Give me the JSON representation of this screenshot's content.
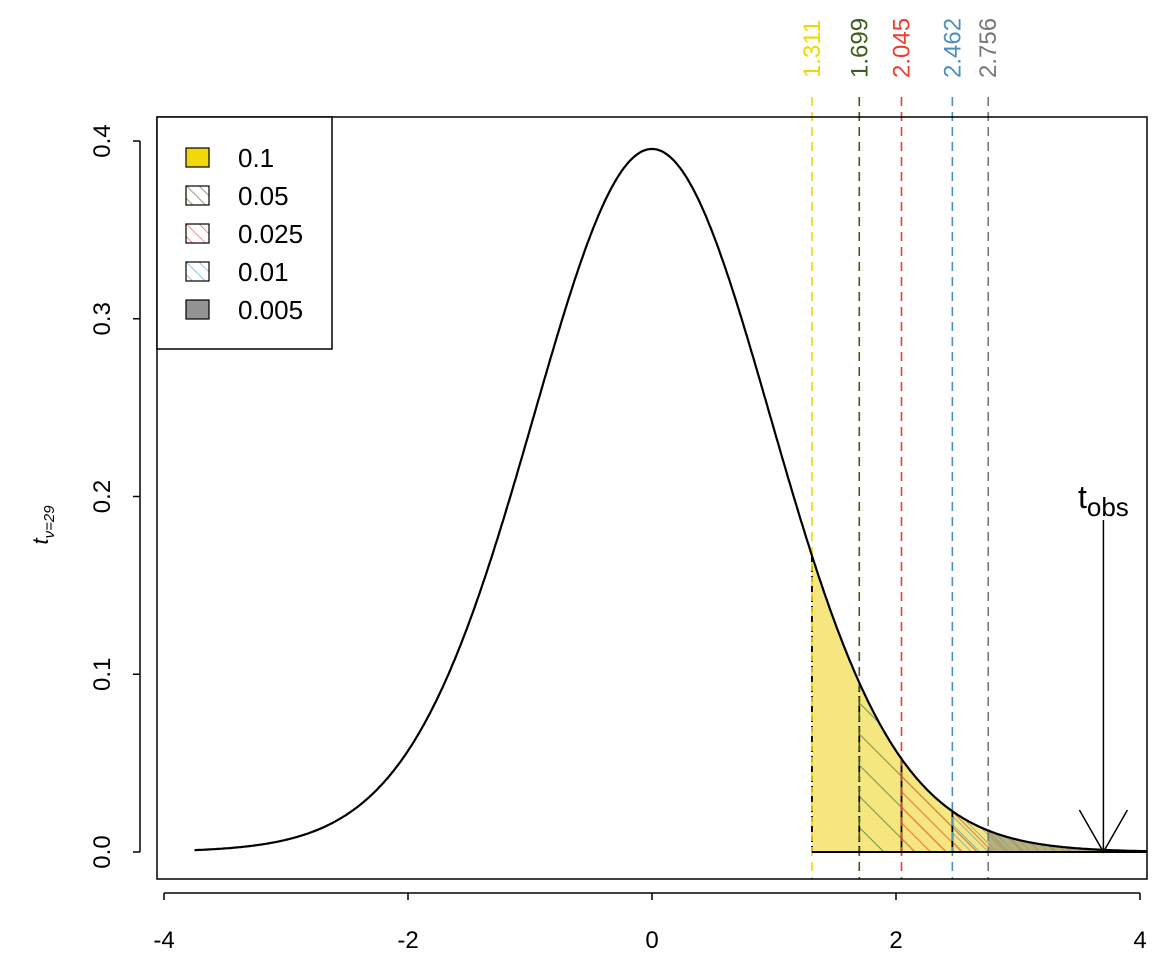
{
  "chart_data": {
    "type": "area",
    "title": "",
    "xlabel": "",
    "ylabel": {
      "base": "t",
      "subscript": "ν=29"
    },
    "df": 29,
    "xlim": [
      -4,
      4
    ],
    "ylim": [
      0,
      0.4
    ],
    "x_ticks": [
      "-4",
      "-2",
      "0",
      "2",
      "4"
    ],
    "x_tick_values": [
      -4,
      -2,
      0,
      2,
      4
    ],
    "y_ticks": [
      "0.0",
      "0.1",
      "0.2",
      "0.3",
      "0.4"
    ],
    "y_tick_values": [
      0,
      0.1,
      0.2,
      0.3,
      0.4
    ],
    "curve_range": [
      -3.75,
      4.06
    ],
    "critical_values": [
      {
        "alpha": "0.1",
        "t": 1.311,
        "label": "1.311",
        "color": "#f2d700",
        "fill": "solid"
      },
      {
        "alpha": "0.05",
        "t": 1.699,
        "label": "1.699",
        "color": "#3d5e1a",
        "fill": "hatch"
      },
      {
        "alpha": "0.025",
        "t": 2.045,
        "label": "2.045",
        "color": "#f03c2e",
        "fill": "hatch"
      },
      {
        "alpha": "0.01",
        "t": 2.462,
        "label": "2.462",
        "color": "#4a8fc0",
        "fill": "hatch"
      },
      {
        "alpha": "0.005",
        "t": 2.756,
        "label": "2.756",
        "color": "#777777",
        "fill": "solid"
      }
    ],
    "legend": {
      "placement": "top-left",
      "entries": [
        "0.1",
        "0.05",
        "0.025",
        "0.01",
        "0.005"
      ]
    },
    "t_obs": {
      "value": 3.7,
      "label_base": "t",
      "label_sub": "obs"
    }
  }
}
